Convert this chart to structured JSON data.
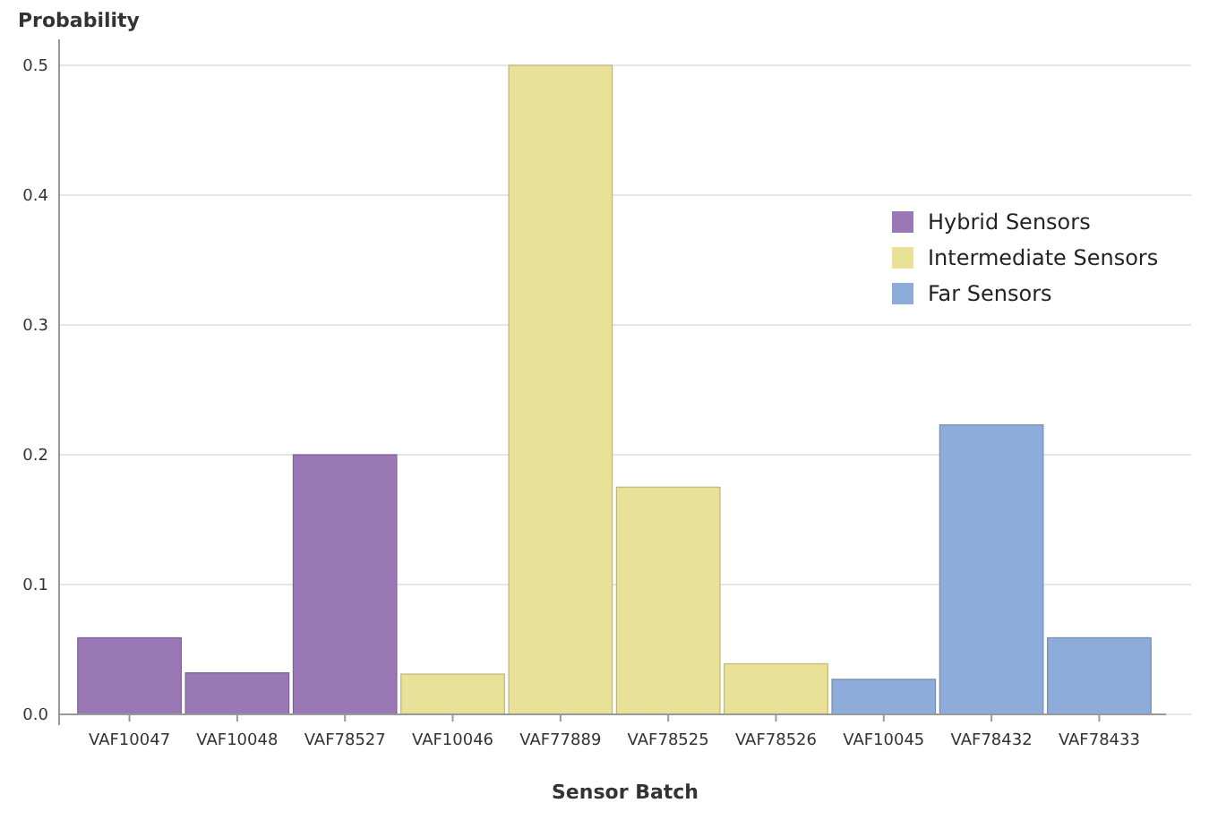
{
  "chart_data": {
    "type": "bar",
    "xlabel": "Sensor Batch",
    "ylabel": "Probability",
    "categories": [
      "VAF10047",
      "VAF10048",
      "VAF78527",
      "VAF10046",
      "VAF77889",
      "VAF78525",
      "VAF78526",
      "VAF10045",
      "VAF78432",
      "VAF78433"
    ],
    "series": [
      {
        "name": "Hybrid Sensors",
        "color": "#9a78b5",
        "values": [
          0.059,
          0.032,
          0.2,
          null,
          null,
          null,
          null,
          null,
          null,
          null
        ]
      },
      {
        "name": "Intermediate Sensors",
        "color": "#e8e197",
        "values": [
          null,
          null,
          null,
          0.031,
          0.5,
          0.175,
          0.039,
          null,
          null,
          null
        ]
      },
      {
        "name": "Far Sensors",
        "color": "#8eacd9",
        "values": [
          null,
          null,
          null,
          null,
          null,
          null,
          null,
          0.027,
          0.223,
          0.059
        ]
      }
    ],
    "ylim": [
      0,
      0.52
    ],
    "yticks": [
      {
        "value": 0,
        "label": "0.0"
      },
      0.1,
      0.2,
      0.3,
      0.4,
      0.5
    ],
    "grid": "y",
    "legend": "right"
  }
}
